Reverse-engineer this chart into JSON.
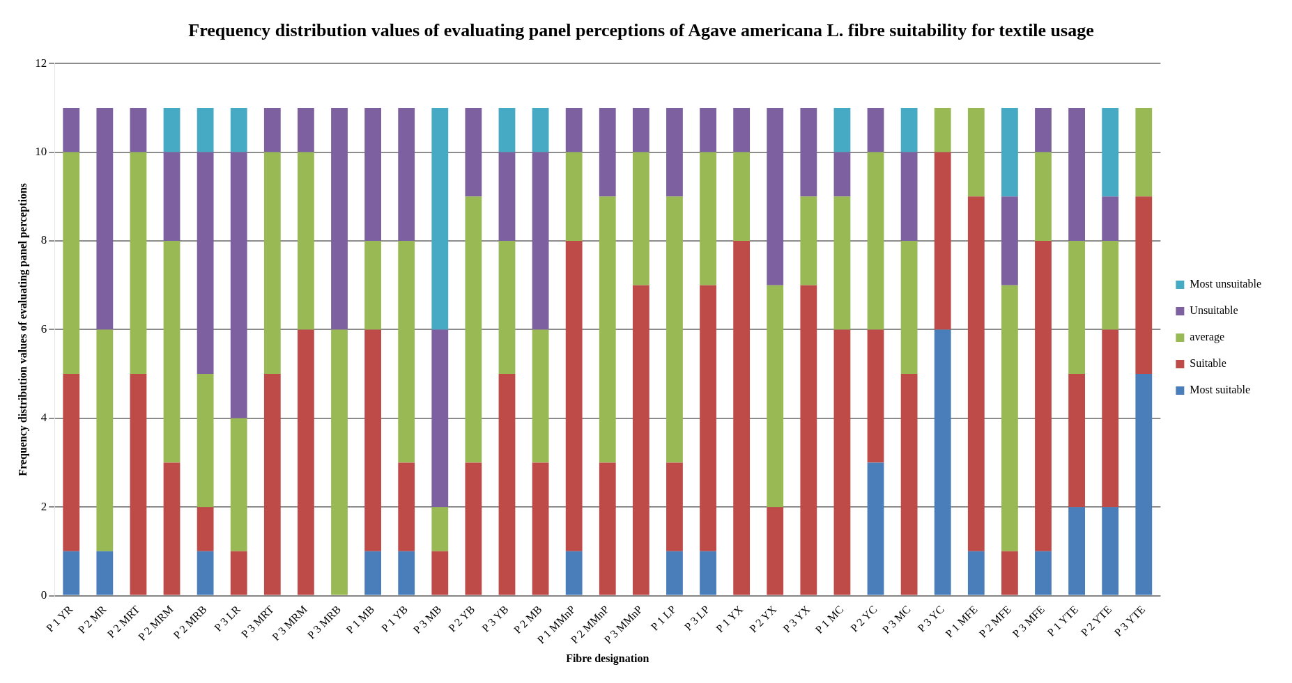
{
  "chart_data": {
    "type": "bar",
    "stacked": true,
    "title": "Frequency distribution values of evaluating panel perceptions of Agave americana L. fibre suitability for textile usage",
    "xlabel": "Fibre designation",
    "ylabel": "Frequency distribution values of evaluating panel perceptions",
    "categories": [
      "P 1 YR",
      "P 2 MR",
      "P 2 MRT",
      "P 2 MRM",
      "P 2 MRB",
      "P 3 LR",
      "P 3 MRT",
      "P 3 MRM",
      "P 3 MRB",
      "P 1 MB",
      "P 1 YB",
      "P 3 MB",
      "P 2 YB",
      "P 3 YB",
      "P 2 MB",
      "P 1 MMnP",
      "P 2 MMnP",
      "P 3 MMnP",
      "P 1 LP",
      "P 3 LP",
      "P 1 YX",
      "P 2 YX",
      "P 3 YX",
      "P 1 MC",
      "P 2 YC",
      "P 3 MC",
      "P 3 YC",
      "P 1 MFE",
      "P 2 MFE",
      "P 3 MFE",
      "P 1 YTE",
      "P 2 YTE",
      "P 3 YTE"
    ],
    "series": [
      {
        "name": "Most suitable",
        "color": "#4a7ebb",
        "values": [
          1,
          1,
          0,
          0,
          1,
          0,
          0,
          0,
          0,
          1,
          1,
          0,
          0,
          0,
          0,
          1,
          0,
          0,
          1,
          1,
          0,
          0,
          0,
          0,
          3,
          0,
          6,
          1,
          0,
          1,
          2,
          2,
          5
        ]
      },
      {
        "name": "Suitable",
        "color": "#be4b48",
        "values": [
          4,
          0,
          5,
          3,
          1,
          1,
          5,
          6,
          0,
          5,
          2,
          1,
          3,
          5,
          3,
          7,
          3,
          7,
          2,
          6,
          8,
          2,
          7,
          6,
          3,
          5,
          4,
          8,
          1,
          7,
          3,
          4,
          4
        ]
      },
      {
        "name": "average",
        "color": "#98b954",
        "values": [
          5,
          5,
          5,
          5,
          3,
          3,
          5,
          4,
          6,
          2,
          5,
          1,
          6,
          3,
          3,
          2,
          6,
          3,
          6,
          3,
          2,
          5,
          2,
          3,
          4,
          3,
          1,
          2,
          6,
          2,
          3,
          2,
          2
        ]
      },
      {
        "name": "Unsuitable",
        "color": "#7d60a0",
        "values": [
          1,
          5,
          1,
          2,
          5,
          6,
          1,
          1,
          5,
          3,
          3,
          4,
          2,
          2,
          4,
          1,
          2,
          1,
          2,
          1,
          1,
          4,
          2,
          1,
          1,
          2,
          0,
          0,
          2,
          1,
          3,
          1,
          0
        ]
      },
      {
        "name": "Most unsuitable",
        "color": "#46aac5",
        "values": [
          0,
          0,
          0,
          1,
          1,
          1,
          0,
          0,
          0,
          0,
          0,
          5,
          0,
          1,
          1,
          0,
          0,
          0,
          0,
          0,
          0,
          0,
          0,
          1,
          0,
          1,
          0,
          0,
          2,
          0,
          0,
          2,
          0
        ]
      }
    ],
    "ylim": [
      0,
      12
    ],
    "yticks": [
      0,
      2,
      4,
      6,
      8,
      10,
      12
    ],
    "grid": "y",
    "legend": "right"
  }
}
